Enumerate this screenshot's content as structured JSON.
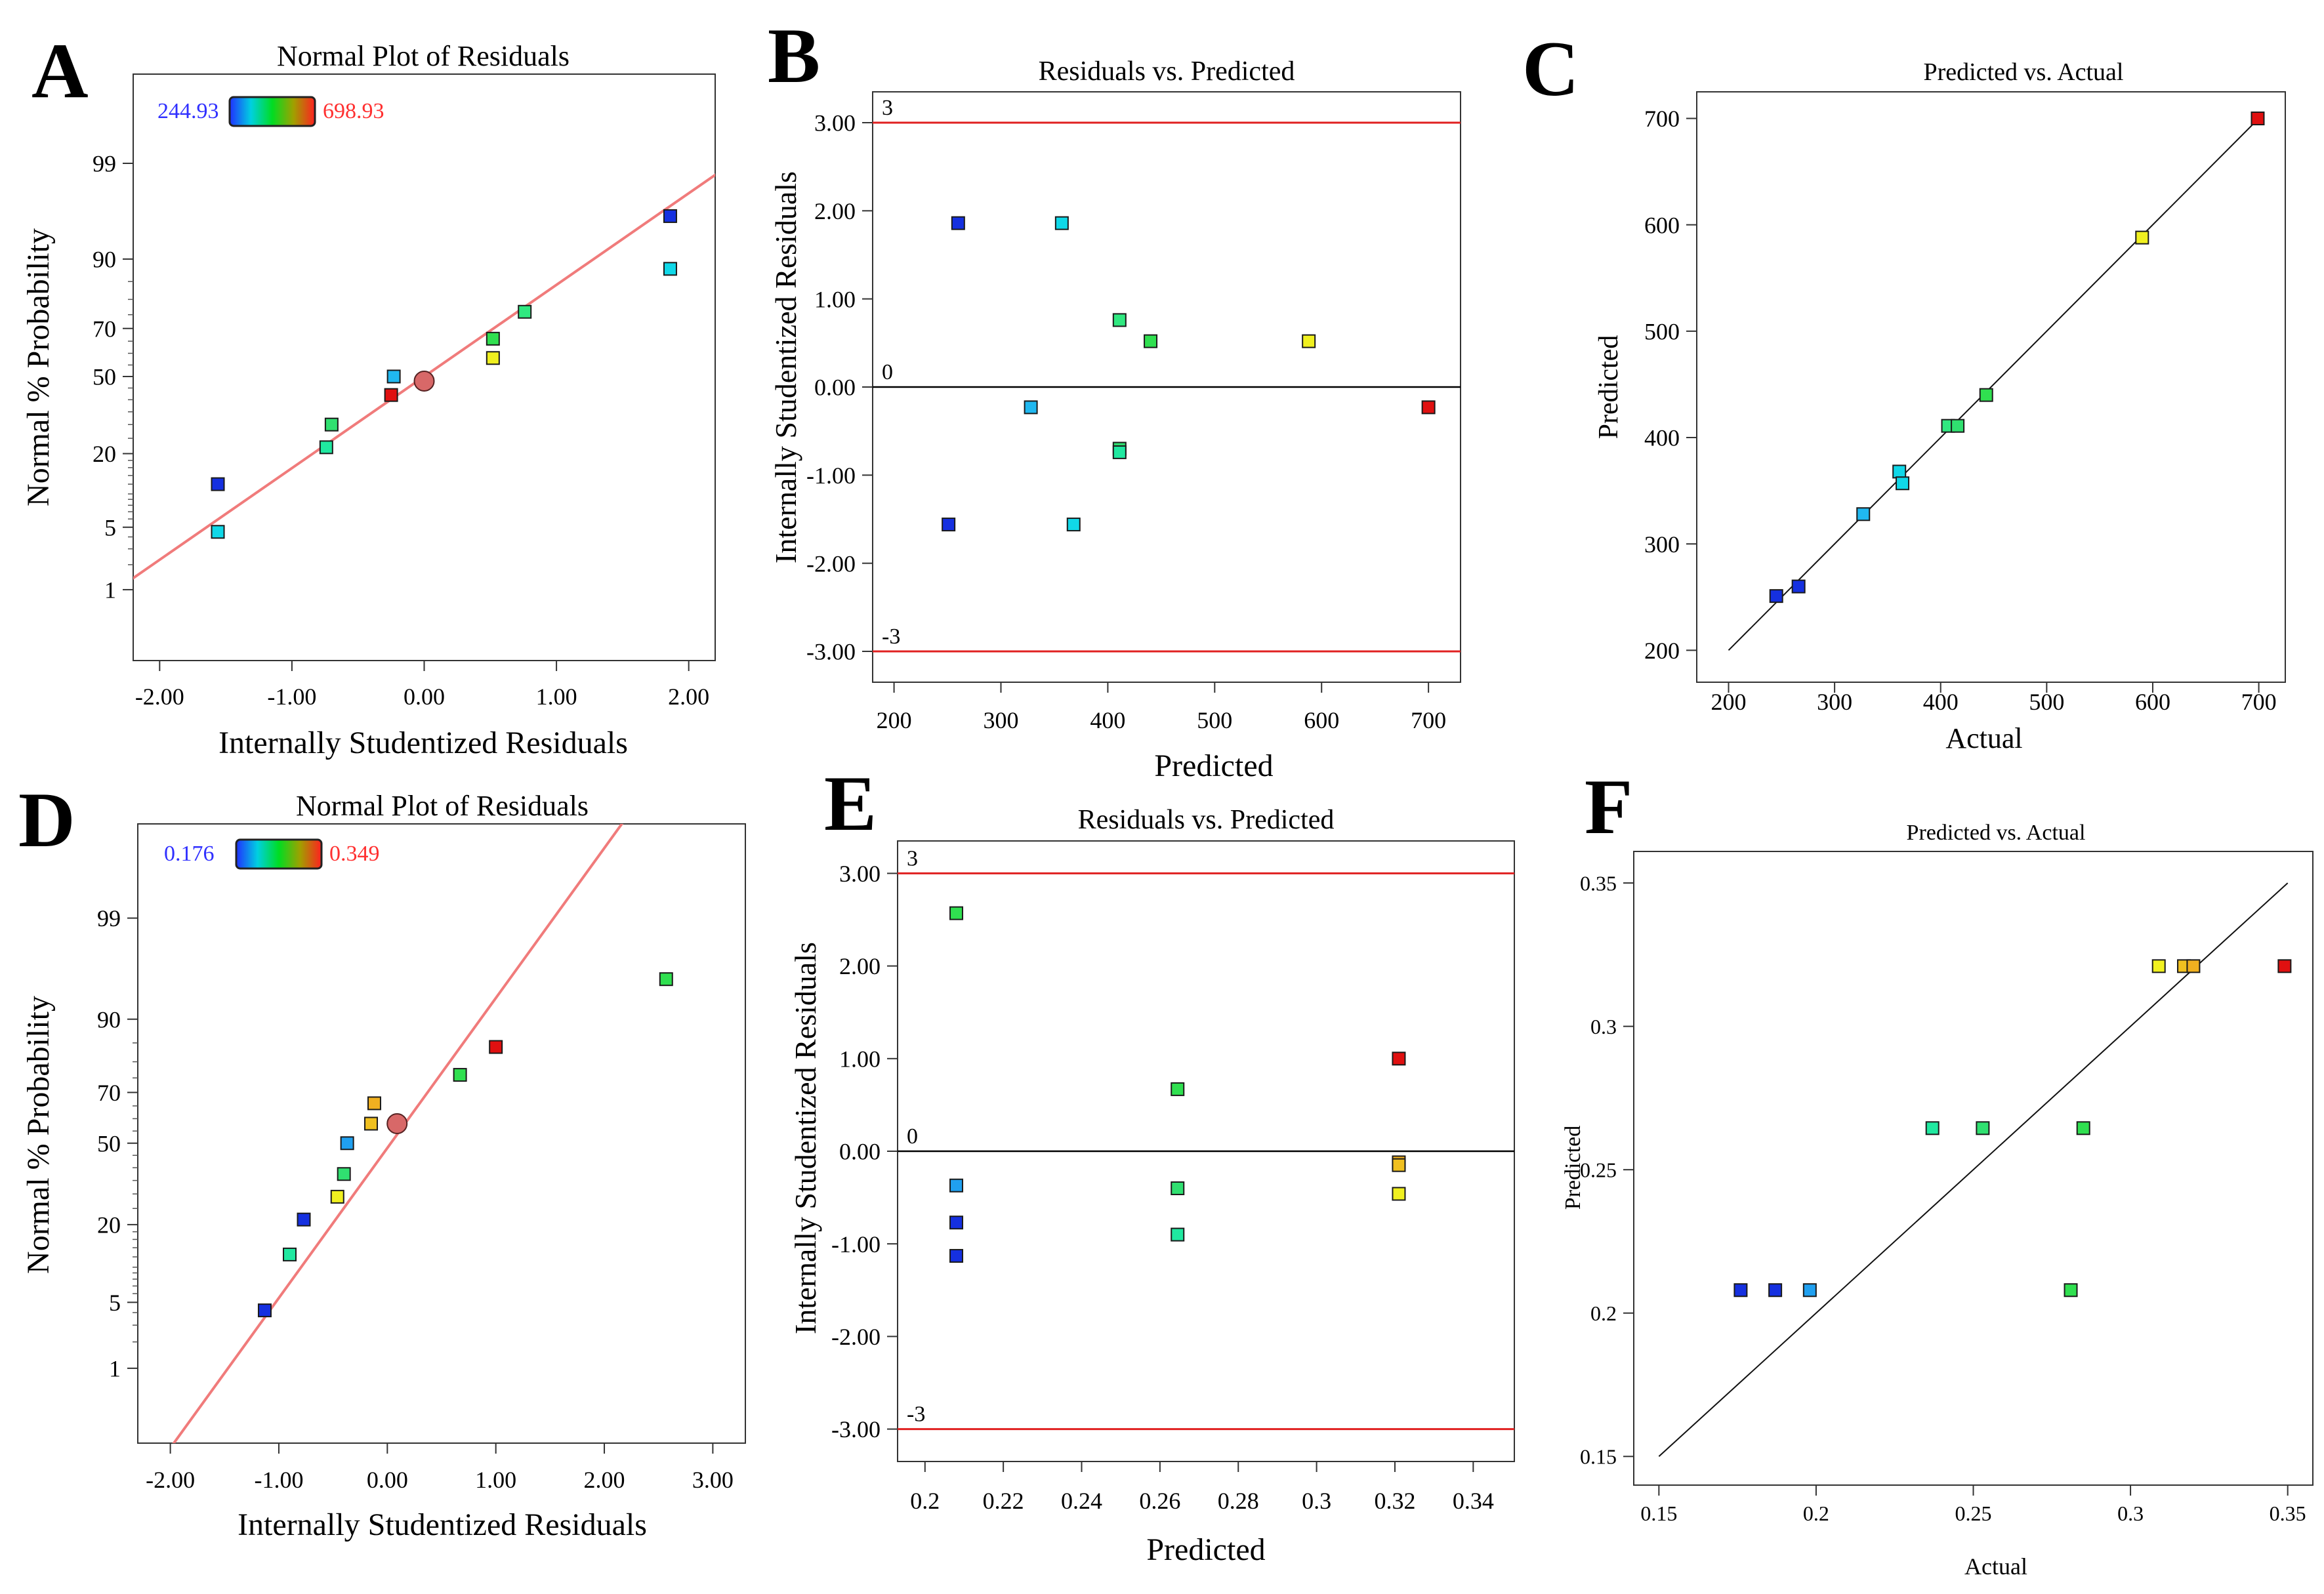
{
  "figure": {
    "panel_letters": [
      "A",
      "B",
      "C",
      "D",
      "E",
      "F"
    ]
  },
  "colors": {
    "reference_line": "#e02020",
    "fit_line": "#f07b7b",
    "zero_line": "#000000",
    "marker_stroke": "#1a1a1a",
    "center_dot": "#d86868",
    "scale_low": "#3030ff",
    "scale_high": "#ff3030"
  },
  "chart_data": [
    {
      "panel": "A",
      "type": "normal-probability",
      "title": "Normal Plot of Residuals",
      "xlabel": "Internally Studentized Residuals",
      "ylabel": "Normal % Probability",
      "xlim": [
        -2.2,
        2.2
      ],
      "x_ticks": [
        -2,
        -1,
        0,
        1,
        2
      ],
      "x_tick_labels": [
        "-2.00",
        "-1.00",
        "0.00",
        "1.00",
        "2.00"
      ],
      "ylim_z": [
        -3.1,
        3.3
      ],
      "y_ticks": [
        1,
        5,
        20,
        50,
        70,
        90,
        99
      ],
      "y_tick_labels": [
        "1",
        "5",
        "20",
        "50",
        "70",
        "90",
        "99"
      ],
      "color_scale": {
        "min_label": "244.93",
        "max_label": "698.93"
      },
      "fit_line": {
        "slope": 1.0,
        "intercept": 0.0
      },
      "center_point": {
        "x": 0.0,
        "p": 48
      },
      "points": [
        {
          "x": -1.56,
          "p": 4.5,
          "color": "#10d8e8"
        },
        {
          "x": -1.56,
          "p": 12.0,
          "color": "#1530e0"
        },
        {
          "x": -0.74,
          "p": 22.0,
          "color": "#20e8a0"
        },
        {
          "x": -0.7,
          "p": 30.0,
          "color": "#30e070"
        },
        {
          "x": -0.25,
          "p": 42.0,
          "color": "#e01010"
        },
        {
          "x": -0.23,
          "p": 50.0,
          "color": "#20b8f0"
        },
        {
          "x": 0.52,
          "p": 58.0,
          "color": "#f0f020"
        },
        {
          "x": 0.52,
          "p": 66.0,
          "color": "#30e050"
        },
        {
          "x": 0.76,
          "p": 76.0,
          "color": "#30e880"
        },
        {
          "x": 1.86,
          "p": 88.0,
          "color": "#10d8e8"
        },
        {
          "x": 1.86,
          "p": 96.0,
          "color": "#1530e0"
        }
      ]
    },
    {
      "panel": "B",
      "type": "scatter",
      "title": "Residuals vs. Predicted",
      "xlabel": "Predicted",
      "ylabel": "Internally Studentized Residuals",
      "xlim": [
        180,
        730
      ],
      "x_ticks": [
        200,
        300,
        400,
        500,
        600,
        700
      ],
      "x_tick_labels": [
        "200",
        "300",
        "400",
        "500",
        "600",
        "700"
      ],
      "ylim": [
        -3.35,
        3.35
      ],
      "y_ticks": [
        -3,
        -2,
        -1,
        0,
        1,
        2,
        3
      ],
      "y_tick_labels": [
        "-3.00",
        "-2.00",
        "-1.00",
        "0.00",
        "1.00",
        "2.00",
        "3.00"
      ],
      "hlines": [
        {
          "y": 3,
          "label": "3",
          "kind": "limit"
        },
        {
          "y": 0,
          "label": "0",
          "kind": "zero"
        },
        {
          "y": -3,
          "label": "-3",
          "kind": "limit"
        }
      ],
      "points": [
        {
          "x": 260,
          "y": 1.86,
          "color": "#1530e0"
        },
        {
          "x": 357,
          "y": 1.86,
          "color": "#10d8e8"
        },
        {
          "x": 411,
          "y": 0.76,
          "color": "#30e880"
        },
        {
          "x": 440,
          "y": 0.52,
          "color": "#30e050"
        },
        {
          "x": 588,
          "y": 0.52,
          "color": "#f0f020"
        },
        {
          "x": 328,
          "y": -0.23,
          "color": "#20b8f0"
        },
        {
          "x": 700,
          "y": -0.23,
          "color": "#e01010"
        },
        {
          "x": 411,
          "y": -0.7,
          "color": "#30e070"
        },
        {
          "x": 411,
          "y": -0.74,
          "color": "#20e8a0"
        },
        {
          "x": 251,
          "y": -1.56,
          "color": "#1530e0"
        },
        {
          "x": 368,
          "y": -1.56,
          "color": "#10d8e8"
        }
      ]
    },
    {
      "panel": "C",
      "type": "scatter",
      "title": "Predicted vs. Actual",
      "xlabel": "Actual",
      "ylabel": "Predicted",
      "xlim": [
        170,
        725
      ],
      "x_ticks": [
        200,
        300,
        400,
        500,
        600,
        700
      ],
      "x_tick_labels": [
        "200",
        "300",
        "400",
        "500",
        "600",
        "700"
      ],
      "ylim": [
        170,
        725
      ],
      "y_ticks": [
        200,
        300,
        400,
        500,
        600,
        700
      ],
      "y_tick_labels": [
        "200",
        "300",
        "400",
        "500",
        "600",
        "700"
      ],
      "diagonal": [
        [
          200,
          200
        ],
        [
          700,
          700
        ]
      ],
      "points": [
        {
          "x": 245,
          "y": 251,
          "color": "#1530e0"
        },
        {
          "x": 266,
          "y": 260,
          "color": "#1530e0"
        },
        {
          "x": 327,
          "y": 328,
          "color": "#20b8f0"
        },
        {
          "x": 361,
          "y": 368,
          "color": "#10d8e8"
        },
        {
          "x": 364,
          "y": 357,
          "color": "#10d8e8"
        },
        {
          "x": 407,
          "y": 411,
          "color": "#30e880"
        },
        {
          "x": 416,
          "y": 411,
          "color": "#30e070"
        },
        {
          "x": 443,
          "y": 440,
          "color": "#30e050"
        },
        {
          "x": 590,
          "y": 588,
          "color": "#f0f020"
        },
        {
          "x": 699,
          "y": 700,
          "color": "#e01010"
        }
      ]
    },
    {
      "panel": "D",
      "type": "normal-probability",
      "title": "Normal Plot of Residuals",
      "xlabel": "Internally Studentized Residuals",
      "ylabel": "Normal % Probability",
      "xlim": [
        -2.3,
        3.3
      ],
      "x_ticks": [
        -2,
        -1,
        0,
        1,
        2,
        3
      ],
      "x_tick_labels": [
        "-2.00",
        "-1.00",
        "0.00",
        "1.00",
        "2.00",
        "3.00"
      ],
      "ylim_z": [
        -3.1,
        3.3
      ],
      "y_ticks": [
        1,
        5,
        20,
        50,
        70,
        90,
        99
      ],
      "y_tick_labels": [
        "1",
        "5",
        "20",
        "50",
        "70",
        "90",
        "99"
      ],
      "color_scale": {
        "min_label": "0.176",
        "max_label": "0.349"
      },
      "fit_line": {
        "slope": 1.55,
        "intercept": -0.05
      },
      "center_point": {
        "x": 0.09,
        "p": 58
      },
      "points": [
        {
          "x": -1.13,
          "p": 4.2,
          "color": "#1530e0"
        },
        {
          "x": -0.9,
          "p": 12.5,
          "color": "#20e8a0"
        },
        {
          "x": -0.77,
          "p": 21.5,
          "color": "#1530e0"
        },
        {
          "x": -0.46,
          "p": 29.0,
          "color": "#f0f020"
        },
        {
          "x": -0.4,
          "p": 37.5,
          "color": "#30e070"
        },
        {
          "x": -0.37,
          "p": 50.0,
          "color": "#20a0f0"
        },
        {
          "x": -0.15,
          "p": 58.0,
          "color": "#f0c020"
        },
        {
          "x": -0.12,
          "p": 66.0,
          "color": "#f0b020"
        },
        {
          "x": 0.67,
          "p": 76.0,
          "color": "#30e050"
        },
        {
          "x": 1.0,
          "p": 84.0,
          "color": "#e01010"
        },
        {
          "x": 2.57,
          "p": 95.5,
          "color": "#30e050"
        }
      ]
    },
    {
      "panel": "E",
      "type": "scatter",
      "title": "Residuals vs. Predicted",
      "xlabel": "Predicted",
      "ylabel": "Internally Studentized Residuals",
      "xlim": [
        0.193,
        0.3505
      ],
      "x_ticks": [
        0.2,
        0.22,
        0.24,
        0.26,
        0.28,
        0.3,
        0.32,
        0.34
      ],
      "x_tick_labels": [
        "0.2",
        "0.22",
        "0.24",
        "0.26",
        "0.28",
        "0.3",
        "0.32",
        "0.34"
      ],
      "ylim": [
        -3.35,
        3.35
      ],
      "y_ticks": [
        -3,
        -2,
        -1,
        0,
        1,
        2,
        3
      ],
      "y_tick_labels": [
        "-3.00",
        "-2.00",
        "-1.00",
        "0.00",
        "1.00",
        "2.00",
        "3.00"
      ],
      "hlines": [
        {
          "y": 3,
          "label": "3",
          "kind": "limit"
        },
        {
          "y": 0,
          "label": "0",
          "kind": "zero"
        },
        {
          "y": -3,
          "label": "-3",
          "kind": "limit"
        }
      ],
      "points": [
        {
          "x": 0.208,
          "y": 2.57,
          "color": "#30e050"
        },
        {
          "x": 0.208,
          "y": -0.37,
          "color": "#20a0f0"
        },
        {
          "x": 0.208,
          "y": -0.77,
          "color": "#1530e0"
        },
        {
          "x": 0.208,
          "y": -1.13,
          "color": "#1530e0"
        },
        {
          "x": 0.2645,
          "y": 0.67,
          "color": "#30e050"
        },
        {
          "x": 0.2645,
          "y": -0.4,
          "color": "#30e070"
        },
        {
          "x": 0.2645,
          "y": -0.9,
          "color": "#20e8a0"
        },
        {
          "x": 0.321,
          "y": 1.0,
          "color": "#e01010"
        },
        {
          "x": 0.321,
          "y": -0.12,
          "color": "#f0b020"
        },
        {
          "x": 0.321,
          "y": -0.15,
          "color": "#f0c020"
        },
        {
          "x": 0.321,
          "y": -0.46,
          "color": "#f0f020"
        }
      ]
    },
    {
      "panel": "F",
      "type": "scatter",
      "title": "Predicted vs. Actual",
      "xlabel": "Actual",
      "ylabel": "Predicted",
      "xlim": [
        0.142,
        0.358
      ],
      "x_ticks": [
        0.15,
        0.2,
        0.25,
        0.3,
        0.35
      ],
      "x_tick_labels": [
        "0.15",
        "0.2",
        "0.25",
        "0.3",
        "0.35"
      ],
      "ylim": [
        0.14,
        0.361
      ],
      "y_ticks": [
        0.15,
        0.2,
        0.25,
        0.3,
        0.35
      ],
      "y_tick_labels": [
        "0.15",
        "0.2",
        "0.25",
        "0.3",
        "0.35"
      ],
      "diagonal": [
        [
          0.15,
          0.15
        ],
        [
          0.35,
          0.35
        ]
      ],
      "points": [
        {
          "x": 0.176,
          "y": 0.208,
          "color": "#1530e0"
        },
        {
          "x": 0.187,
          "y": 0.208,
          "color": "#1530e0"
        },
        {
          "x": 0.198,
          "y": 0.208,
          "color": "#20a0f0"
        },
        {
          "x": 0.237,
          "y": 0.2645,
          "color": "#20e8a0"
        },
        {
          "x": 0.253,
          "y": 0.2645,
          "color": "#30e070"
        },
        {
          "x": 0.285,
          "y": 0.2645,
          "color": "#30e050"
        },
        {
          "x": 0.281,
          "y": 0.208,
          "color": "#30e050"
        },
        {
          "x": 0.309,
          "y": 0.321,
          "color": "#f0f020"
        },
        {
          "x": 0.317,
          "y": 0.321,
          "color": "#f0c020"
        },
        {
          "x": 0.32,
          "y": 0.321,
          "color": "#f0b020"
        },
        {
          "x": 0.349,
          "y": 0.321,
          "color": "#e01010"
        }
      ]
    }
  ]
}
